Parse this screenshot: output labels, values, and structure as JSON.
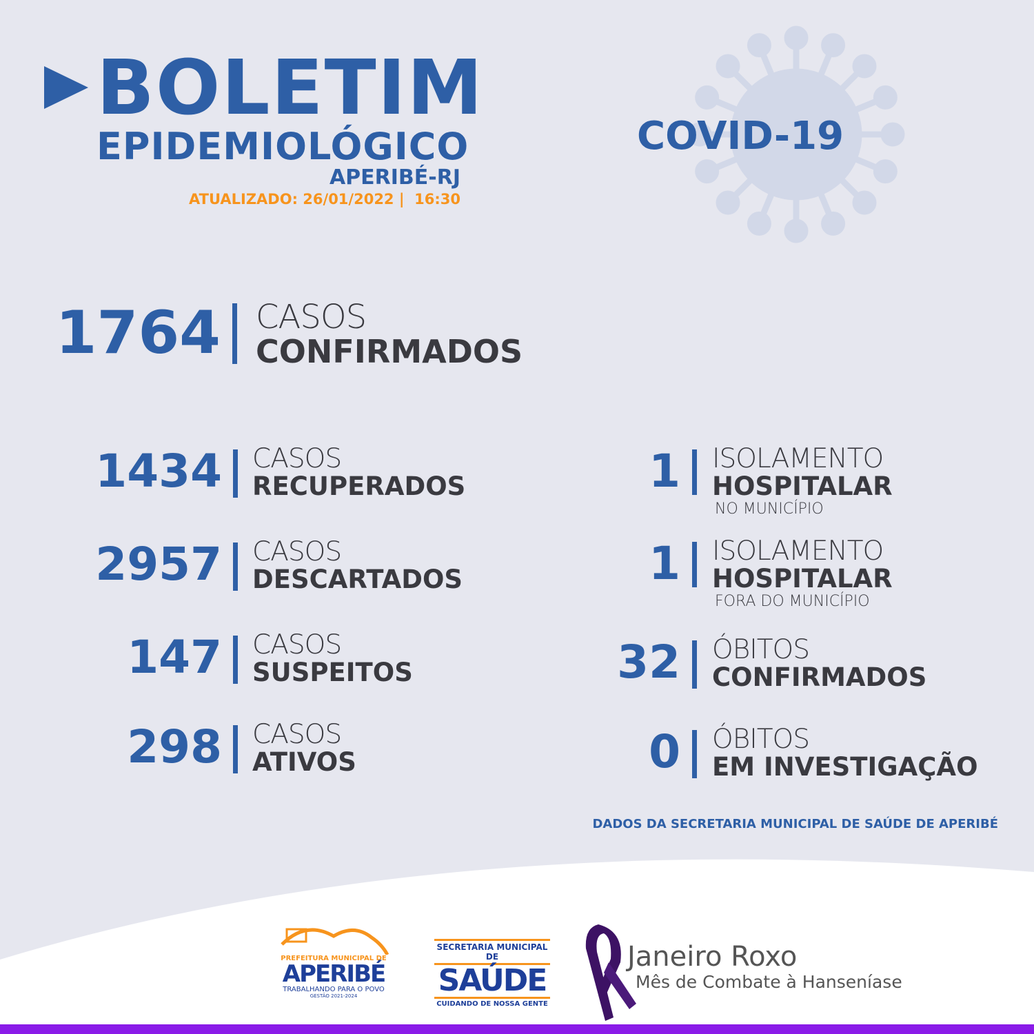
{
  "header": {
    "title": "BOLETIM",
    "subtitle": "EPIDEMIOLÓGICO",
    "location": "APERIBÉ-RJ",
    "updated": "ATUALIZADO: 26/01/2022 |  16:30",
    "badge": "COVID-19"
  },
  "main_stat": {
    "value": "1764",
    "line1": "CASOS",
    "line2": "CONFIRMADOS"
  },
  "left_stats": [
    {
      "value": "1434",
      "line1": "CASOS",
      "line2": "RECUPERADOS"
    },
    {
      "value": "2957",
      "line1": "CASOS",
      "line2": "DESCARTADOS"
    },
    {
      "value": "147",
      "line1": "CASOS",
      "line2": "SUSPEITOS"
    },
    {
      "value": "298",
      "line1": "CASOS",
      "line2": "ATIVOS"
    }
  ],
  "right_stats": [
    {
      "value": "1",
      "line1": "ISOLAMENTO",
      "line2": "HOSPITALAR",
      "line3": "NO MUNICÍPIO"
    },
    {
      "value": "1",
      "line1": "ISOLAMENTO",
      "line2": "HOSPITALAR",
      "line3": "FORA DO MUNICÍPIO"
    },
    {
      "value": "32",
      "line1": "ÓBITOS",
      "line2": "CONFIRMADOS"
    },
    {
      "value": "0",
      "line1": "ÓBITOS",
      "line2": "EM INVESTIGAÇÃO"
    }
  ],
  "source": "DADOS DA SECRETARIA MUNICIPAL DE SAÚDE DE APERIBÉ",
  "footer": {
    "logo1": {
      "top": "PREFEITURA MUNICIPAL DE",
      "name": "APERIBÉ",
      "tagline": "TRABALHANDO PARA O POVO",
      "term": "GESTÃO 2021-2024"
    },
    "logo2": {
      "top": "SECRETARIA MUNICIPAL DE",
      "name": "SAÚDE",
      "tagline": "CUIDANDO DE NOSSA GENTE"
    },
    "campaign": {
      "title": "Janeiro Roxo",
      "subtitle": "Mês de Combate à Hanseníase"
    }
  },
  "colors": {
    "primary": "#2e5fa6",
    "accent": "#f7941d",
    "purple": "#8a1be8",
    "text": "#3a3a40"
  }
}
